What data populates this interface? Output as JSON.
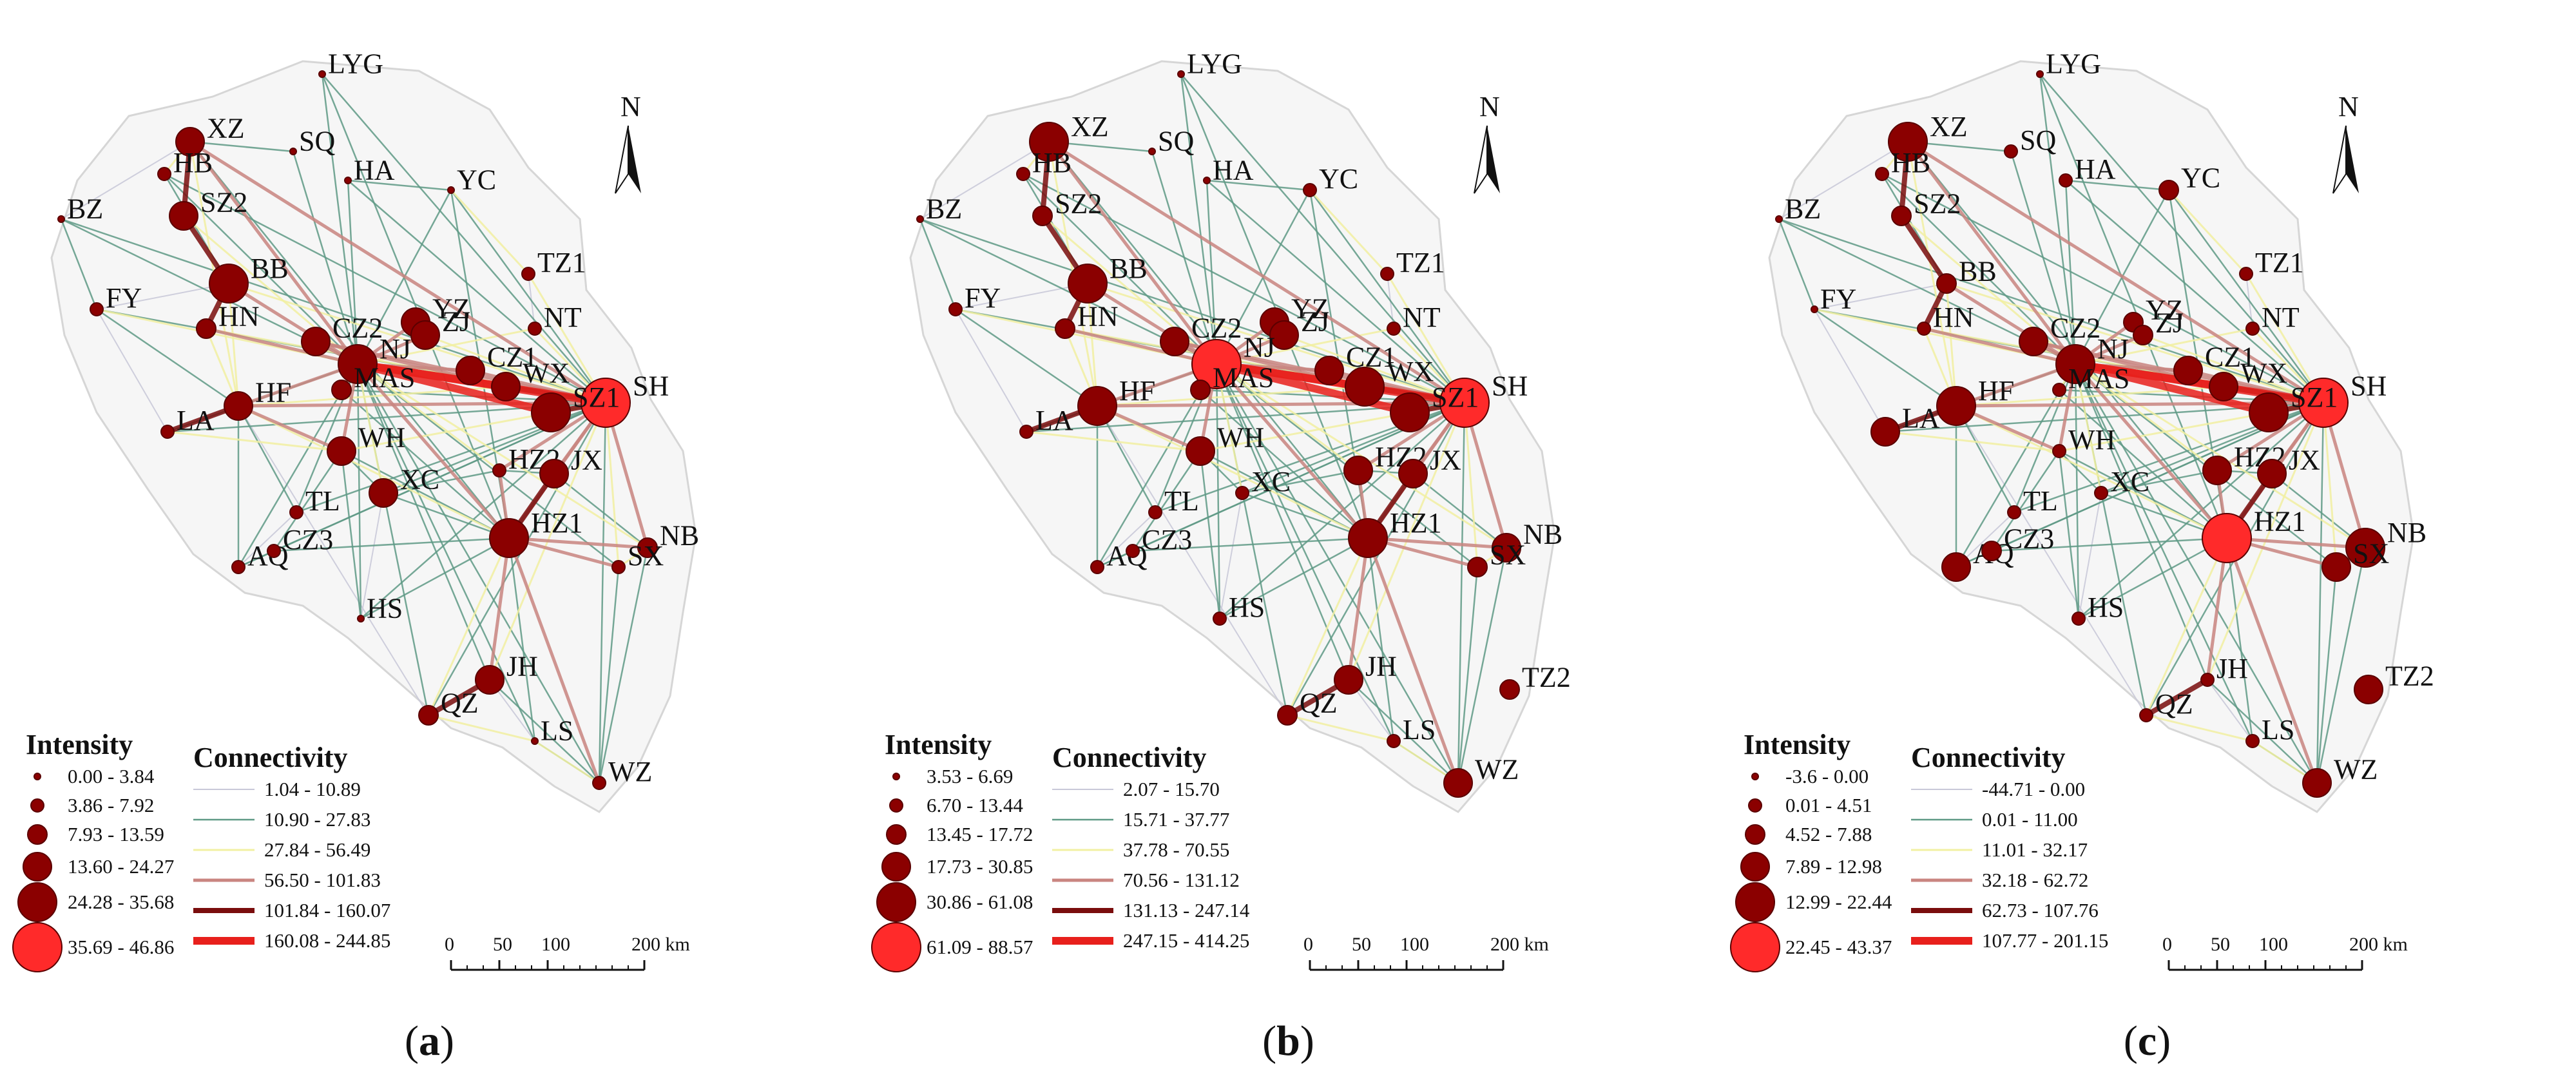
{
  "panels": [
    {
      "caption_open": "(",
      "caption_letter": "a",
      "caption_close": ")",
      "cities": [
        {
          "name": "LYG",
          "intensity_class": 0
        },
        {
          "name": "XZ",
          "intensity_class": 3
        },
        {
          "name": "SQ",
          "intensity_class": 0
        },
        {
          "name": "HB",
          "intensity_class": 1
        },
        {
          "name": "HA",
          "intensity_class": 0
        },
        {
          "name": "YC",
          "intensity_class": 0
        },
        {
          "name": "BZ",
          "intensity_class": 0
        },
        {
          "name": "SZ2",
          "intensity_class": 3
        },
        {
          "name": "BB",
          "intensity_class": 4
        },
        {
          "name": "TZ1",
          "intensity_class": 1
        },
        {
          "name": "FY",
          "intensity_class": 1
        },
        {
          "name": "YZ",
          "intensity_class": 3
        },
        {
          "name": "HN",
          "intensity_class": 2
        },
        {
          "name": "CZ2",
          "intensity_class": 3
        },
        {
          "name": "ZJ",
          "intensity_class": 3
        },
        {
          "name": "NT",
          "intensity_class": 1
        },
        {
          "name": "HF",
          "intensity_class": 3
        },
        {
          "name": "NJ",
          "intensity_class": 4
        },
        {
          "name": "CZ1",
          "intensity_class": 3
        },
        {
          "name": "WX",
          "intensity_class": 3
        },
        {
          "name": "SH",
          "intensity_class": 5
        },
        {
          "name": "LA",
          "intensity_class": 1
        },
        {
          "name": "MAS",
          "intensity_class": 2
        },
        {
          "name": "SZ1",
          "intensity_class": 4
        },
        {
          "name": "WH",
          "intensity_class": 3
        },
        {
          "name": "HZ2",
          "intensity_class": 1
        },
        {
          "name": "JX",
          "intensity_class": 3
        },
        {
          "name": "XC",
          "intensity_class": 3
        },
        {
          "name": "TL",
          "intensity_class": 1
        },
        {
          "name": "HZ1",
          "intensity_class": 4
        },
        {
          "name": "NB",
          "intensity_class": 2
        },
        {
          "name": "SX",
          "intensity_class": 1
        },
        {
          "name": "AQ",
          "intensity_class": 1
        },
        {
          "name": "CZ3",
          "intensity_class": 1
        },
        {
          "name": "HS",
          "intensity_class": 0
        },
        {
          "name": "JH",
          "intensity_class": 3
        },
        {
          "name": "QZ",
          "intensity_class": 2
        },
        {
          "name": "LS",
          "intensity_class": 0
        },
        {
          "name": "WZ",
          "intensity_class": 1
        }
      ],
      "legend": {
        "intensity_title": "Intensity",
        "intensity_classes": [
          "0.00 - 3.84",
          "3.86 - 7.92",
          "7.93 - 13.59",
          "13.60 - 24.27",
          "24.28 - 35.68",
          "35.69 - 46.86"
        ],
        "connectivity_title": "Connectivity",
        "connectivity_classes": [
          "1.04 - 10.89",
          "10.90 - 27.83",
          "27.84 - 56.49",
          "56.50 - 101.83",
          "101.84 - 160.07",
          "160.08 - 244.85"
        ]
      },
      "scale": {
        "ticks": [
          "0",
          "50",
          "100",
          "200 km"
        ]
      }
    },
    {
      "caption_open": "(",
      "caption_letter": "b",
      "caption_close": ")",
      "cities": [
        {
          "name": "LYG",
          "intensity_class": 0
        },
        {
          "name": "XZ",
          "intensity_class": 4
        },
        {
          "name": "SQ",
          "intensity_class": 0
        },
        {
          "name": "HB",
          "intensity_class": 1
        },
        {
          "name": "HA",
          "intensity_class": 0
        },
        {
          "name": "YC",
          "intensity_class": 1
        },
        {
          "name": "BZ",
          "intensity_class": 0
        },
        {
          "name": "SZ2",
          "intensity_class": 2
        },
        {
          "name": "BB",
          "intensity_class": 4
        },
        {
          "name": "TZ1",
          "intensity_class": 1
        },
        {
          "name": "FY",
          "intensity_class": 1
        },
        {
          "name": "YZ",
          "intensity_class": 3
        },
        {
          "name": "HN",
          "intensity_class": 2
        },
        {
          "name": "CZ2",
          "intensity_class": 3
        },
        {
          "name": "ZJ",
          "intensity_class": 3
        },
        {
          "name": "NT",
          "intensity_class": 1
        },
        {
          "name": "HF",
          "intensity_class": 4
        },
        {
          "name": "NJ",
          "intensity_class": 5
        },
        {
          "name": "CZ1",
          "intensity_class": 3
        },
        {
          "name": "WX",
          "intensity_class": 4
        },
        {
          "name": "SH",
          "intensity_class": 5
        },
        {
          "name": "LA",
          "intensity_class": 1
        },
        {
          "name": "MAS",
          "intensity_class": 2
        },
        {
          "name": "SZ1",
          "intensity_class": 4
        },
        {
          "name": "WH",
          "intensity_class": 3
        },
        {
          "name": "HZ2",
          "intensity_class": 3
        },
        {
          "name": "JX",
          "intensity_class": 3
        },
        {
          "name": "XC",
          "intensity_class": 1
        },
        {
          "name": "TL",
          "intensity_class": 1
        },
        {
          "name": "HZ1",
          "intensity_class": 4
        },
        {
          "name": "NB",
          "intensity_class": 3
        },
        {
          "name": "SX",
          "intensity_class": 2
        },
        {
          "name": "AQ",
          "intensity_class": 1
        },
        {
          "name": "CZ3",
          "intensity_class": 1
        },
        {
          "name": "HS",
          "intensity_class": 1
        },
        {
          "name": "JH",
          "intensity_class": 3
        },
        {
          "name": "QZ",
          "intensity_class": 2
        },
        {
          "name": "LS",
          "intensity_class": 1
        },
        {
          "name": "WZ",
          "intensity_class": 3
        },
        {
          "name": "TZ2",
          "intensity_class": 2
        }
      ],
      "legend": {
        "intensity_title": "Intensity",
        "intensity_classes": [
          "3.53 - 6.69",
          "6.70 - 13.44",
          "13.45 - 17.72",
          "17.73 - 30.85",
          "30.86 - 61.08",
          "61.09 - 88.57"
        ],
        "connectivity_title": "Connectivity",
        "connectivity_classes": [
          "2.07 - 15.70",
          "15.71 - 37.77",
          "37.78 - 70.55",
          "70.56 - 131.12",
          "131.13 - 247.14",
          "247.15 - 414.25"
        ]
      },
      "scale": {
        "ticks": [
          "0",
          "50",
          "100",
          "200 km"
        ]
      }
    },
    {
      "caption_open": "(",
      "caption_letter": "c",
      "caption_close": ")",
      "cities": [
        {
          "name": "LYG",
          "intensity_class": 0
        },
        {
          "name": "XZ",
          "intensity_class": 4
        },
        {
          "name": "SQ",
          "intensity_class": 1
        },
        {
          "name": "HB",
          "intensity_class": 1
        },
        {
          "name": "HA",
          "intensity_class": 1
        },
        {
          "name": "YC",
          "intensity_class": 2
        },
        {
          "name": "BZ",
          "intensity_class": 0
        },
        {
          "name": "SZ2",
          "intensity_class": 2
        },
        {
          "name": "BB",
          "intensity_class": 2
        },
        {
          "name": "TZ1",
          "intensity_class": 1
        },
        {
          "name": "FY",
          "intensity_class": 0
        },
        {
          "name": "YZ",
          "intensity_class": 2
        },
        {
          "name": "HN",
          "intensity_class": 1
        },
        {
          "name": "CZ2",
          "intensity_class": 3
        },
        {
          "name": "ZJ",
          "intensity_class": 2
        },
        {
          "name": "NT",
          "intensity_class": 1
        },
        {
          "name": "HF",
          "intensity_class": 4
        },
        {
          "name": "NJ",
          "intensity_class": 4
        },
        {
          "name": "CZ1",
          "intensity_class": 3
        },
        {
          "name": "WX",
          "intensity_class": 3
        },
        {
          "name": "SH",
          "intensity_class": 5
        },
        {
          "name": "LA",
          "intensity_class": 3
        },
        {
          "name": "MAS",
          "intensity_class": 1
        },
        {
          "name": "SZ1",
          "intensity_class": 4
        },
        {
          "name": "WH",
          "intensity_class": 1
        },
        {
          "name": "HZ2",
          "intensity_class": 3
        },
        {
          "name": "JX",
          "intensity_class": 3
        },
        {
          "name": "XC",
          "intensity_class": 1
        },
        {
          "name": "TL",
          "intensity_class": 1
        },
        {
          "name": "HZ1",
          "intensity_class": 5
        },
        {
          "name": "NB",
          "intensity_class": 4
        },
        {
          "name": "SX",
          "intensity_class": 3
        },
        {
          "name": "AQ",
          "intensity_class": 3
        },
        {
          "name": "CZ3",
          "intensity_class": 2
        },
        {
          "name": "HS",
          "intensity_class": 1
        },
        {
          "name": "JH",
          "intensity_class": 1
        },
        {
          "name": "QZ",
          "intensity_class": 1
        },
        {
          "name": "LS",
          "intensity_class": 1
        },
        {
          "name": "WZ",
          "intensity_class": 3
        },
        {
          "name": "TZ2",
          "intensity_class": 3
        }
      ],
      "legend": {
        "intensity_title": "Intensity",
        "intensity_classes": [
          "-3.6 - 0.00",
          "0.01 - 4.51",
          "4.52 - 7.88",
          "7.89 - 12.98",
          "12.99 - 22.44",
          "22.45 - 43.37"
        ],
        "connectivity_title": "Connectivity",
        "connectivity_classes": [
          "-44.71 - 0.00",
          "0.01 - 11.00",
          "11.01 - 32.17",
          "32.18 - 62.72",
          "62.73 - 107.76",
          "107.77 - 201.15"
        ]
      },
      "scale": {
        "ticks": [
          "0",
          "50",
          "100",
          "200 km"
        ]
      }
    }
  ],
  "north_label": "N",
  "colors": {
    "node": "#8b0000",
    "node_top": "#ff2a2a",
    "links": [
      "#c8c8d8",
      "#5f9a86",
      "#f2f0a2",
      "#c98580",
      "#7a0d0d",
      "#e8201c"
    ]
  },
  "links": [
    {
      "a": "NJ",
      "b": "SH",
      "c": 5
    },
    {
      "a": "NJ",
      "b": "WX",
      "c": 5
    },
    {
      "a": "NJ",
      "b": "SZ1",
      "c": 5
    },
    {
      "a": "XZ",
      "b": "SZ2",
      "c": 4
    },
    {
      "a": "SZ2",
      "b": "BB",
      "c": 4
    },
    {
      "a": "BB",
      "b": "NJ",
      "c": 3
    },
    {
      "a": "HF",
      "b": "NJ",
      "c": 3
    },
    {
      "a": "HZ1",
      "b": "SH",
      "c": 3
    },
    {
      "a": "HZ1",
      "b": "JH",
      "c": 3
    },
    {
      "a": "JH",
      "b": "QZ",
      "c": 4
    },
    {
      "a": "HZ1",
      "b": "NB",
      "c": 3
    },
    {
      "a": "HZ1",
      "b": "SX",
      "c": 3
    },
    {
      "a": "XZ",
      "b": "NJ",
      "c": 3
    },
    {
      "a": "XZ",
      "b": "SH",
      "c": 3
    },
    {
      "a": "BB",
      "b": "HN",
      "c": 4
    },
    {
      "a": "HF",
      "b": "WH",
      "c": 3
    },
    {
      "a": "HF",
      "b": "LA",
      "c": 4
    },
    {
      "a": "YZ",
      "b": "ZJ",
      "c": 4
    },
    {
      "a": "CZ2",
      "b": "WX",
      "c": 3
    },
    {
      "a": "WH",
      "b": "SH",
      "c": 2
    },
    {
      "a": "HF",
      "b": "SH",
      "c": 3
    },
    {
      "a": "JX",
      "b": "SH",
      "c": 3
    },
    {
      "a": "HZ2",
      "b": "HZ1",
      "c": 3
    },
    {
      "a": "JX",
      "b": "HZ1",
      "c": 4
    },
    {
      "a": "WZ",
      "b": "HZ1",
      "c": 3
    },
    {
      "a": "WZ",
      "b": "LS",
      "c": 2
    },
    {
      "a": "NB",
      "b": "SH",
      "c": 3
    },
    {
      "a": "HZ1",
      "b": "NJ",
      "c": 3
    },
    {
      "a": "XZ",
      "b": "HB",
      "c": 2
    },
    {
      "a": "BZ",
      "b": "FY",
      "c": 1
    },
    {
      "a": "FY",
      "b": "HF",
      "c": 1
    },
    {
      "a": "FY",
      "b": "NJ",
      "c": 2
    },
    {
      "a": "LA",
      "b": "NJ",
      "c": 1
    },
    {
      "a": "AQ",
      "b": "HF",
      "c": 1
    },
    {
      "a": "AQ",
      "b": "CZ3",
      "c": 1
    },
    {
      "a": "TL",
      "b": "HF",
      "c": 1
    },
    {
      "a": "TL",
      "b": "NJ",
      "c": 1
    },
    {
      "a": "HS",
      "b": "HZ1",
      "c": 1
    },
    {
      "a": "HS",
      "b": "NJ",
      "c": 1
    },
    {
      "a": "XC",
      "b": "HZ1",
      "c": 1
    },
    {
      "a": "XC",
      "b": "SH",
      "c": 1
    },
    {
      "a": "XC",
      "b": "NJ",
      "c": 2
    },
    {
      "a": "MAS",
      "b": "NJ",
      "c": 2
    },
    {
      "a": "MAS",
      "b": "SH",
      "c": 1
    },
    {
      "a": "YC",
      "b": "NJ",
      "c": 1
    },
    {
      "a": "YC",
      "b": "SH",
      "c": 1
    },
    {
      "a": "YC",
      "b": "HZ1",
      "c": 1
    },
    {
      "a": "HA",
      "b": "NJ",
      "c": 1
    },
    {
      "a": "HA",
      "b": "SH",
      "c": 1
    },
    {
      "a": "SQ",
      "b": "NJ",
      "c": 1
    },
    {
      "a": "LYG",
      "b": "NJ",
      "c": 1
    },
    {
      "a": "LYG",
      "b": "SH",
      "c": 1
    },
    {
      "a": "LYG",
      "b": "HZ1",
      "c": 1
    },
    {
      "a": "TZ1",
      "b": "SH",
      "c": 2
    },
    {
      "a": "NT",
      "b": "SH",
      "c": 2
    },
    {
      "a": "NT",
      "b": "NJ",
      "c": 2
    },
    {
      "a": "HN",
      "b": "SH",
      "c": 2
    },
    {
      "a": "HN",
      "b": "NJ",
      "c": 3
    },
    {
      "a": "BB",
      "b": "SH",
      "c": 2
    },
    {
      "a": "HF",
      "b": "HZ1",
      "c": 2
    },
    {
      "a": "HF",
      "b": "WX",
      "c": 2
    },
    {
      "a": "QZ",
      "b": "SH",
      "c": 1
    },
    {
      "a": "QZ",
      "b": "NJ",
      "c": 1
    },
    {
      "a": "LS",
      "b": "HZ1",
      "c": 1
    },
    {
      "a": "LS",
      "b": "NJ",
      "c": 1
    },
    {
      "a": "JH",
      "b": "SH",
      "c": 2
    },
    {
      "a": "JH",
      "b": "NJ",
      "c": 1
    },
    {
      "a": "WZ",
      "b": "SH",
      "c": 1
    },
    {
      "a": "WZ",
      "b": "NJ",
      "c": 1
    },
    {
      "a": "SX",
      "b": "SH",
      "c": 2
    },
    {
      "a": "SX",
      "b": "NJ",
      "c": 1
    },
    {
      "a": "NB",
      "b": "NJ",
      "c": 2
    },
    {
      "a": "HZ2",
      "b": "SH",
      "c": 3
    },
    {
      "a": "HZ2",
      "b": "NJ",
      "c": 2
    },
    {
      "a": "ZJ",
      "b": "SH",
      "c": 2
    },
    {
      "a": "CZ1",
      "b": "SH",
      "c": 3
    },
    {
      "a": "CZ1",
      "b": "NJ",
      "c": 3
    },
    {
      "a": "SZ2",
      "b": "NJ",
      "c": 2
    },
    {
      "a": "HB",
      "b": "NJ",
      "c": 1
    },
    {
      "a": "HB",
      "b": "SH",
      "c": 1
    },
    {
      "a": "BZ",
      "b": "NJ",
      "c": 1
    },
    {
      "a": "BZ",
      "b": "SH",
      "c": 1
    },
    {
      "a": "FY",
      "b": "SH",
      "c": 1
    },
    {
      "a": "LA",
      "b": "SH",
      "c": 1
    },
    {
      "a": "AQ",
      "b": "SH",
      "c": 1
    },
    {
      "a": "AQ",
      "b": "NJ",
      "c": 1
    },
    {
      "a": "CZ3",
      "b": "SH",
      "c": 1
    },
    {
      "a": "CZ3",
      "b": "HZ1",
      "c": 1
    },
    {
      "a": "TL",
      "b": "SH",
      "c": 1
    },
    {
      "a": "HS",
      "b": "SH",
      "c": 1
    },
    {
      "a": "WH",
      "b": "HZ1",
      "c": 1
    },
    {
      "a": "WH",
      "b": "NJ",
      "c": 3
    },
    {
      "a": "MAS",
      "b": "HZ1",
      "c": 1
    },
    {
      "a": "XZ",
      "b": "HF",
      "c": 2
    },
    {
      "a": "XZ",
      "b": "HZ1",
      "c": 1
    },
    {
      "a": "BB",
      "b": "HF",
      "c": 2
    },
    {
      "a": "HN",
      "b": "HF",
      "c": 2
    },
    {
      "a": "LA",
      "b": "WH",
      "c": 2
    },
    {
      "a": "TL",
      "b": "AQ",
      "c": 0
    },
    {
      "a": "HS",
      "b": "XC",
      "c": 0
    },
    {
      "a": "QZ",
      "b": "HF",
      "c": 0
    },
    {
      "a": "LS",
      "b": "QZ",
      "c": 2
    },
    {
      "a": "BZ",
      "b": "XZ",
      "c": 0
    },
    {
      "a": "FY",
      "b": "BB",
      "c": 0
    },
    {
      "a": "FY",
      "b": "LA",
      "c": 0
    },
    {
      "a": "HB",
      "b": "BB",
      "c": 1
    },
    {
      "a": "SQ",
      "b": "XZ",
      "c": 1
    },
    {
      "a": "HA",
      "b": "YC",
      "c": 1
    },
    {
      "a": "YC",
      "b": "TZ1",
      "c": 2
    },
    {
      "a": "TZ1",
      "b": "NT",
      "c": 0
    },
    {
      "a": "HZ2",
      "b": "JX",
      "c": 1
    },
    {
      "a": "JX",
      "b": "NB",
      "c": 1
    },
    {
      "a": "NB",
      "b": "SX",
      "c": 2
    },
    {
      "a": "SX",
      "b": "WZ",
      "c": 1
    },
    {
      "a": "WZ",
      "b": "JH",
      "c": 1
    },
    {
      "a": "JH",
      "b": "LS",
      "c": 0
    },
    {
      "a": "XC",
      "b": "WH",
      "c": 1
    },
    {
      "a": "XC",
      "b": "HZ2",
      "c": 1
    },
    {
      "a": "CZ3",
      "b": "WH",
      "c": 1
    },
    {
      "a": "HS",
      "b": "WH",
      "c": 1
    },
    {
      "a": "QZ",
      "b": "HZ1",
      "c": 2
    },
    {
      "a": "LS",
      "b": "WZ",
      "c": 1
    },
    {
      "a": "NB",
      "b": "WZ",
      "c": 1
    },
    {
      "a": "SZ1",
      "b": "SH",
      "c": 4
    },
    {
      "a": "WX",
      "b": "SH",
      "c": 4
    },
    {
      "a": "ZJ",
      "b": "NJ",
      "c": 3
    },
    {
      "a": "YZ",
      "b": "NJ",
      "c": 3
    },
    {
      "a": "CZ2",
      "b": "NJ",
      "c": 3
    },
    {
      "a": "CZ2",
      "b": "SH",
      "c": 3
    }
  ]
}
